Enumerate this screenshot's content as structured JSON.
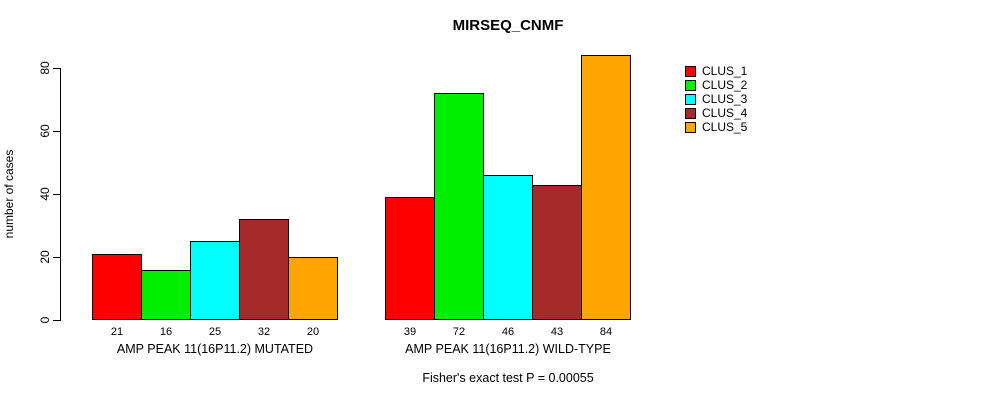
{
  "chart_data": {
    "type": "bar",
    "title": "MIRSEQ_CNMF",
    "ylabel": "number of cases",
    "xlabel": "",
    "yticks": [
      0,
      20,
      40,
      60,
      80
    ],
    "ylim": [
      0,
      84
    ],
    "grid": false,
    "legend_position": "right",
    "legend": [
      {
        "label": "CLUS_1",
        "color": "#FF0000"
      },
      {
        "label": "CLUS_2",
        "color": "#00EE00"
      },
      {
        "label": "CLUS_3",
        "color": "#00FFFF"
      },
      {
        "label": "CLUS_4",
        "color": "#A52A2A"
      },
      {
        "label": "CLUS_5",
        "color": "#FFA500"
      }
    ],
    "groups": [
      {
        "label": "AMP PEAK 11(16P11.2) MUTATED",
        "values": [
          21,
          16,
          25,
          32,
          20
        ]
      },
      {
        "label": "AMP PEAK 11(16P11.2) WILD-TYPE",
        "values": [
          39,
          72,
          46,
          43,
          84
        ]
      }
    ],
    "annotation": "Fisher's exact test P = 0.00055"
  }
}
